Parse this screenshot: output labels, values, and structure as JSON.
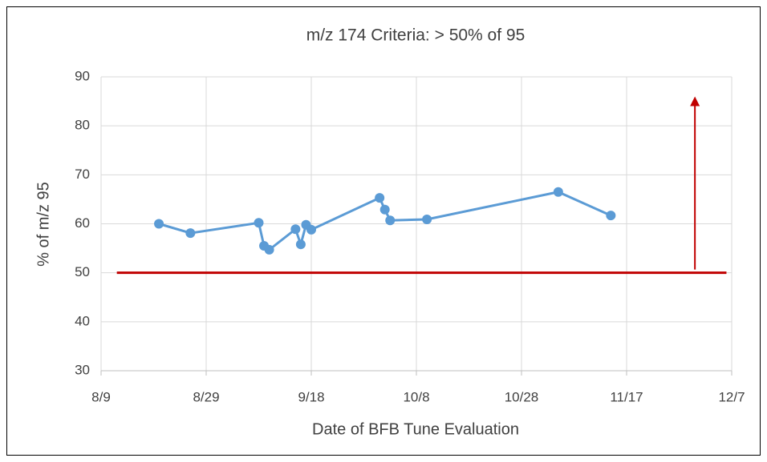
{
  "chart_data": {
    "type": "line",
    "title": "m/z 174 Criteria: > 50% of 95",
    "x_label": "Date of BFB Tune Evaluation",
    "y_label": "% of m/z 95",
    "series": [
      {
        "name": "m/z 174",
        "color": "#5b9bd5",
        "x": [
          "8/20",
          "8/26",
          "9/8",
          "9/9",
          "9/10",
          "9/15",
          "9/16",
          "9/17",
          "9/18",
          "10/1",
          "10/2",
          "10/3",
          "10/10",
          "11/4",
          "11/14"
        ],
        "values": [
          60.0,
          58.1,
          60.2,
          55.5,
          54.7,
          58.9,
          55.8,
          59.8,
          58.8,
          65.3,
          62.9,
          60.7,
          60.9,
          66.5,
          61.7
        ]
      }
    ],
    "threshold": {
      "value": 50,
      "x": [
        "8/12",
        "12/6"
      ],
      "color": "#c00000"
    },
    "arrow": {
      "x": "11/30",
      "y": [
        50,
        86
      ],
      "color": "#c00000"
    },
    "xlim": [
      "8/9",
      "12/7"
    ],
    "xticks": [
      "8/9",
      "8/29",
      "9/18",
      "10/8",
      "10/28",
      "11/17",
      "12/7"
    ],
    "ylim": [
      30,
      90
    ],
    "yticks": [
      30,
      40,
      50,
      60,
      70,
      80,
      90
    ],
    "grid": true
  }
}
